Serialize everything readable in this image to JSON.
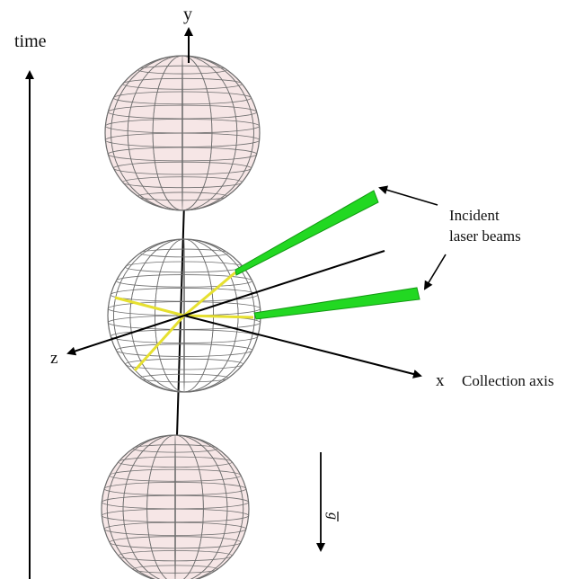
{
  "labels": {
    "time": "time",
    "y": "y",
    "x": "x",
    "z": "z",
    "collection_axis": "Collection axis",
    "incident_line1": "Incident",
    "incident_line2": "laser beams",
    "gravity": "g"
  },
  "colors": {
    "sphere_fill": "#f6e6e6",
    "grid": "#6e6e6e",
    "axis": "#000000",
    "beam": "#22d822",
    "beam_edge": "#129912",
    "scatter_path": "#e6e030"
  }
}
